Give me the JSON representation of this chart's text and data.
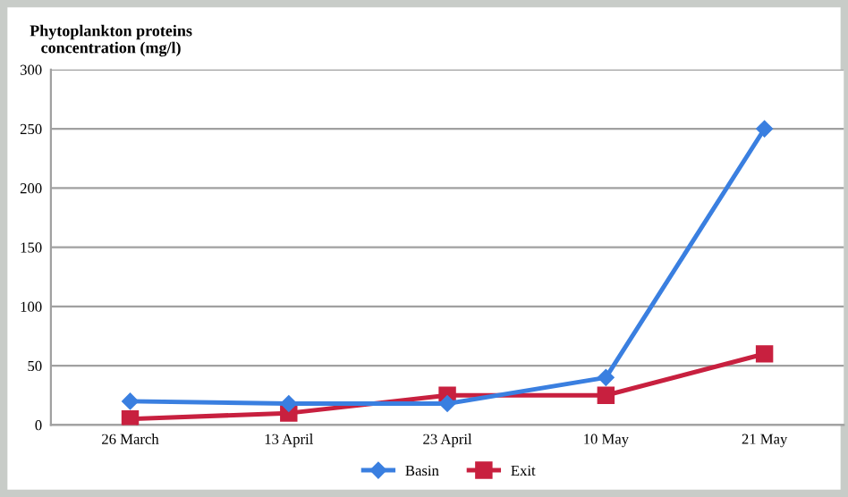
{
  "chart_data": {
    "type": "line",
    "ylabel": "Phytoplankton proteins\nconcentration (mg/l)",
    "categories": [
      "26 March",
      "13 April",
      "23 April",
      "10 May",
      "21 May"
    ],
    "series": [
      {
        "name": "Basin",
        "color": "#3a7fe0",
        "values": [
          20,
          18,
          18,
          40,
          250
        ],
        "marker": "diamond"
      },
      {
        "name": "Exit",
        "color": "#c8203f",
        "values": [
          5,
          10,
          25,
          25,
          60
        ],
        "marker": "square"
      }
    ],
    "ylim": [
      0,
      300
    ],
    "yticks": [
      0,
      50,
      100,
      150,
      200,
      250,
      300
    ],
    "grid": "y",
    "legend": "bottom",
    "line_style": "solid"
  }
}
